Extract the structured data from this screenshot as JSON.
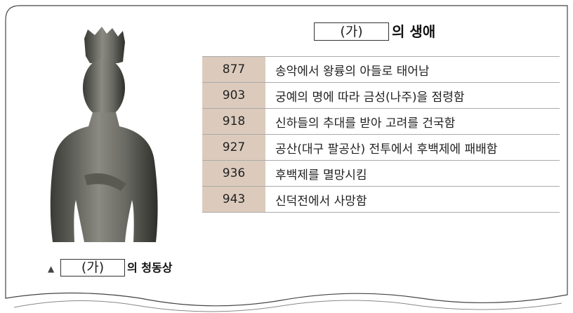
{
  "title": {
    "blank": "(가)",
    "text": "의 생애"
  },
  "table": {
    "rows": [
      [
        "877",
        "송악에서 왕륭의 아들로 태어남"
      ],
      [
        "903",
        "궁예의 명에 따라 금성(나주)을 점령함"
      ],
      [
        "918",
        "신하들의 추대를 받아 고려를 건국함"
      ],
      [
        "927",
        "공산(대구 팔공산) 전투에서 후백제에 패배함"
      ],
      [
        "936",
        "후백제를 멸망시킴"
      ],
      [
        "943",
        "신덕전에서 사망함"
      ]
    ]
  },
  "caption": {
    "marker": "▲",
    "blank": "(가)",
    "text": "의 청동상"
  }
}
